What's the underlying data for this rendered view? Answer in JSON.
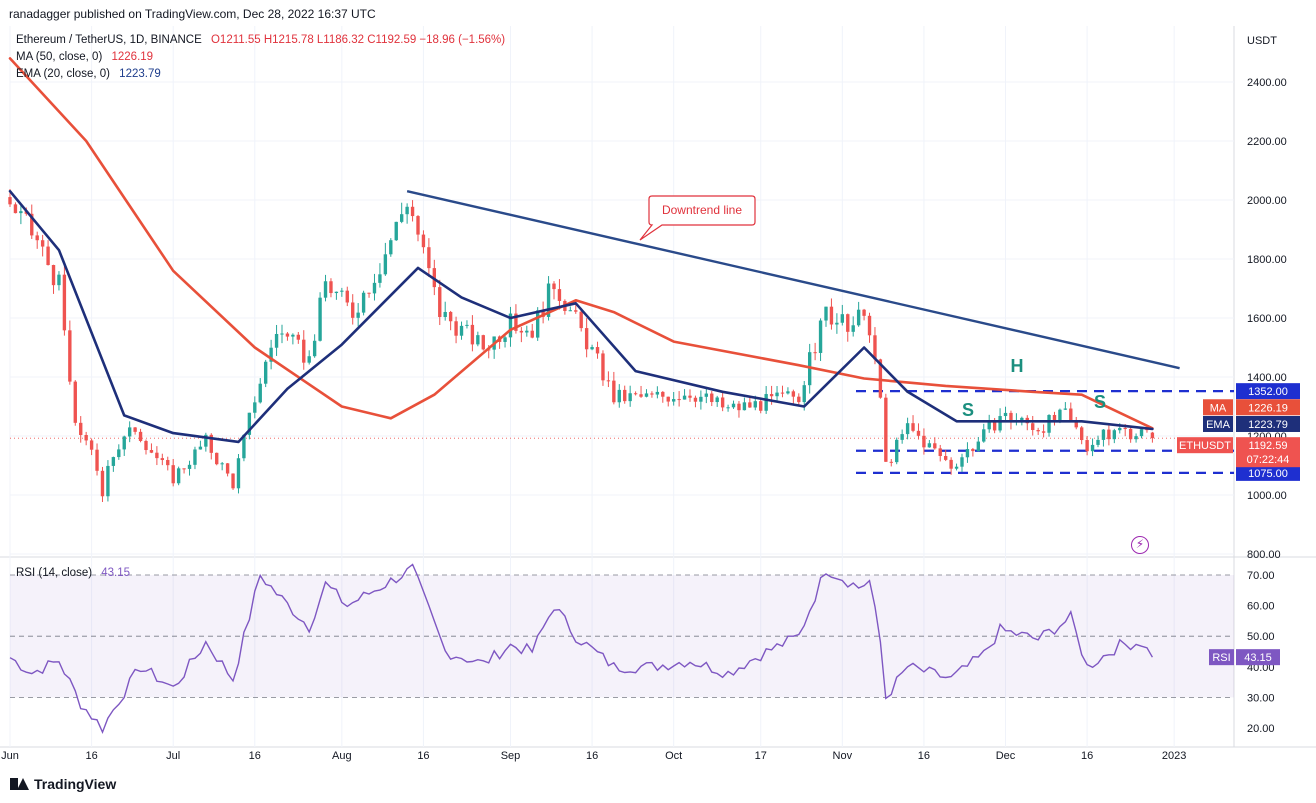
{
  "header": {
    "published": "ranadagger published on TradingView.com, Dec 28, 2022 16:37 UTC"
  },
  "legend": {
    "symbol": "Ethereum / TetherUS, 1D, BINANCE",
    "ohlc": "O1211.55 H1215.78 L1186.32 C1192.59 −18.96 (−1.56%)",
    "ma_label": "MA (50, close, 0)",
    "ma_value": "1226.19",
    "ema_label": "EMA (20, close, 0)",
    "ema_value": "1223.79"
  },
  "rsi_legend": {
    "label": "RSI (14, close)",
    "value": "43.15"
  },
  "footer": {
    "brand": "TradingView"
  },
  "icons": {
    "flash": "lightning-icon"
  },
  "colors": {
    "up": "#26a69a",
    "down": "#ef5350",
    "ma": "#e8503a",
    "ema": "#1e2f7a",
    "trend": "#2a4a8a",
    "level": "#1e2fd0",
    "rsi": "#7e57c2",
    "annot": "#1b8f7f",
    "callout": "#e0323c"
  },
  "chart_data": {
    "type": "candlestick",
    "title": "Ethereum / TetherUS, 1D, BINANCE",
    "y_axis": {
      "label": "USDT",
      "ticks": [
        800,
        1000,
        1200,
        1400,
        1600,
        1800,
        2000,
        2200,
        2400
      ],
      "range": [
        780,
        2540
      ]
    },
    "x_axis": {
      "ticks": [
        "Jun",
        "16",
        "Jul",
        "16",
        "Aug",
        "16",
        "Sep",
        "16",
        "Oct",
        "17",
        "Nov",
        "16",
        "Dec",
        "16",
        "2023"
      ],
      "tick_dates": [
        "2022-06-01",
        "2022-06-16",
        "2022-07-01",
        "2022-07-16",
        "2022-08-01",
        "2022-08-16",
        "2022-09-01",
        "2022-09-16",
        "2022-10-01",
        "2022-10-17",
        "2022-11-01",
        "2022-11-16",
        "2022-12-01",
        "2022-12-16",
        "2023-01-01"
      ],
      "range": [
        "2022-06-01",
        "2023-01-12"
      ]
    },
    "close_anchors": [
      [
        "2022-06-01",
        1990
      ],
      [
        "2022-06-06",
        1860
      ],
      [
        "2022-06-10",
        1710
      ],
      [
        "2022-06-13",
        1220
      ],
      [
        "2022-06-15",
        1200
      ],
      [
        "2022-06-18",
        1000
      ],
      [
        "2022-06-19",
        1120
      ],
      [
        "2022-06-24",
        1230
      ],
      [
        "2022-06-29",
        1100
      ],
      [
        "2022-07-01",
        1060
      ],
      [
        "2022-07-07",
        1180
      ],
      [
        "2022-07-12",
        1040
      ],
      [
        "2022-07-16",
        1330
      ],
      [
        "2022-07-20",
        1560
      ],
      [
        "2022-07-26",
        1460
      ],
      [
        "2022-07-29",
        1720
      ],
      [
        "2022-08-03",
        1620
      ],
      [
        "2022-08-08",
        1780
      ],
      [
        "2022-08-13",
        2000
      ],
      [
        "2022-08-14",
        1950
      ],
      [
        "2022-08-19",
        1620
      ],
      [
        "2022-08-27",
        1500
      ],
      [
        "2022-09-01",
        1580
      ],
      [
        "2022-09-05",
        1560
      ],
      [
        "2022-09-09",
        1720
      ],
      [
        "2022-09-13",
        1590
      ],
      [
        "2022-09-17",
        1450
      ],
      [
        "2022-09-20",
        1330
      ],
      [
        "2022-09-27",
        1330
      ],
      [
        "2022-10-04",
        1350
      ],
      [
        "2022-10-11",
        1290
      ],
      [
        "2022-10-17",
        1310
      ],
      [
        "2022-10-24",
        1340
      ],
      [
        "2022-10-29",
        1620
      ],
      [
        "2022-11-03",
        1550
      ],
      [
        "2022-11-05",
        1640
      ],
      [
        "2022-11-08",
        1330
      ],
      [
        "2022-11-09",
        1100
      ],
      [
        "2022-11-13",
        1230
      ],
      [
        "2022-11-21",
        1100
      ],
      [
        "2022-11-27",
        1200
      ],
      [
        "2022-11-30",
        1270
      ],
      [
        "2022-12-07",
        1230
      ],
      [
        "2022-12-12",
        1270
      ],
      [
        "2022-12-16",
        1170
      ],
      [
        "2022-12-22",
        1220
      ],
      [
        "2022-12-26",
        1211
      ],
      [
        "2022-12-28",
        1192.59
      ]
    ],
    "series": [
      {
        "name": "MA (50, close, 0)",
        "last": 1226.19,
        "points": [
          [
            "2022-06-01",
            2480
          ],
          [
            "2022-06-15",
            2200
          ],
          [
            "2022-07-01",
            1760
          ],
          [
            "2022-07-16",
            1500
          ],
          [
            "2022-08-01",
            1300
          ],
          [
            "2022-08-10",
            1260
          ],
          [
            "2022-08-18",
            1340
          ],
          [
            "2022-09-01",
            1560
          ],
          [
            "2022-09-13",
            1660
          ],
          [
            "2022-09-20",
            1620
          ],
          [
            "2022-10-01",
            1520
          ],
          [
            "2022-10-24",
            1440
          ],
          [
            "2022-11-05",
            1395
          ],
          [
            "2022-11-20",
            1370
          ],
          [
            "2022-12-06",
            1350
          ],
          [
            "2022-12-15",
            1340
          ],
          [
            "2022-12-28",
            1226.19
          ]
        ]
      },
      {
        "name": "EMA (20, close, 0)",
        "last": 1223.79,
        "points": [
          [
            "2022-06-01",
            2030
          ],
          [
            "2022-06-10",
            1830
          ],
          [
            "2022-06-22",
            1270
          ],
          [
            "2022-07-01",
            1210
          ],
          [
            "2022-07-13",
            1180
          ],
          [
            "2022-07-22",
            1360
          ],
          [
            "2022-08-01",
            1510
          ],
          [
            "2022-08-15",
            1770
          ],
          [
            "2022-08-23",
            1670
          ],
          [
            "2022-09-01",
            1600
          ],
          [
            "2022-09-13",
            1650
          ],
          [
            "2022-09-24",
            1420
          ],
          [
            "2022-10-10",
            1350
          ],
          [
            "2022-10-25",
            1300
          ],
          [
            "2022-11-05",
            1500
          ],
          [
            "2022-11-13",
            1350
          ],
          [
            "2022-11-22",
            1250
          ],
          [
            "2022-12-04",
            1250
          ],
          [
            "2022-12-15",
            1250
          ],
          [
            "2022-12-28",
            1223.79
          ]
        ]
      }
    ],
    "annotations": [
      {
        "type": "trendline",
        "from": [
          "2022-08-13",
          2030
        ],
        "to": [
          "2023-01-02",
          1430
        ]
      },
      {
        "type": "callout",
        "text": "Downtrend line"
      },
      {
        "type": "dashed_level",
        "value": 1352,
        "label": "1352.00"
      },
      {
        "type": "dashed_level",
        "value": 1150,
        "label": "1150.00"
      },
      {
        "type": "dashed_level",
        "value": 1075,
        "label": "1075.00"
      },
      {
        "type": "text",
        "text": "S"
      },
      {
        "type": "text",
        "text": "H"
      },
      {
        "type": "text",
        "text": "S"
      }
    ],
    "price_tags": [
      {
        "name": "MA",
        "value": "1226.19"
      },
      {
        "name": "EMA",
        "value": "1223.79"
      },
      {
        "name": "ETHUSDT",
        "value": "1192.59",
        "countdown": "07:22:44"
      }
    ],
    "rsi": {
      "name": "RSI (14, close)",
      "last": 43.15,
      "ticks": [
        20,
        30,
        40,
        50,
        60,
        70
      ],
      "range": [
        15,
        75
      ],
      "band": [
        30,
        70
      ],
      "points": [
        [
          "2022-06-01",
          43
        ],
        [
          "2022-06-05",
          38
        ],
        [
          "2022-06-10",
          42
        ],
        [
          "2022-06-14",
          28
        ],
        [
          "2022-06-18",
          20
        ],
        [
          "2022-06-21",
          29
        ],
        [
          "2022-06-25",
          40
        ],
        [
          "2022-07-01",
          33
        ],
        [
          "2022-07-07",
          48
        ],
        [
          "2022-07-12",
          36
        ],
        [
          "2022-07-17",
          70
        ],
        [
          "2022-07-20",
          64
        ],
        [
          "2022-07-26",
          53
        ],
        [
          "2022-07-29",
          67
        ],
        [
          "2022-08-02",
          60
        ],
        [
          "2022-08-08",
          66
        ],
        [
          "2022-08-14",
          72
        ],
        [
          "2022-08-20",
          45
        ],
        [
          "2022-08-27",
          41
        ],
        [
          "2022-09-01",
          47
        ],
        [
          "2022-09-05",
          45
        ],
        [
          "2022-09-09",
          60
        ],
        [
          "2022-09-13",
          50
        ],
        [
          "2022-09-20",
          40
        ],
        [
          "2022-09-27",
          40
        ],
        [
          "2022-10-04",
          42
        ],
        [
          "2022-10-11",
          38
        ],
        [
          "2022-10-17",
          44
        ],
        [
          "2022-10-24",
          50
        ],
        [
          "2022-10-29",
          72
        ],
        [
          "2022-11-04",
          66
        ],
        [
          "2022-11-06",
          68
        ],
        [
          "2022-11-08",
          48
        ],
        [
          "2022-11-09",
          30
        ],
        [
          "2022-11-13",
          40
        ],
        [
          "2022-11-21",
          36
        ],
        [
          "2022-11-27",
          44
        ],
        [
          "2022-11-30",
          52
        ],
        [
          "2022-12-07",
          49
        ],
        [
          "2022-12-13",
          56
        ],
        [
          "2022-12-16",
          40
        ],
        [
          "2022-12-22",
          47
        ],
        [
          "2022-12-26",
          48
        ],
        [
          "2022-12-28",
          43.15
        ]
      ]
    }
  }
}
